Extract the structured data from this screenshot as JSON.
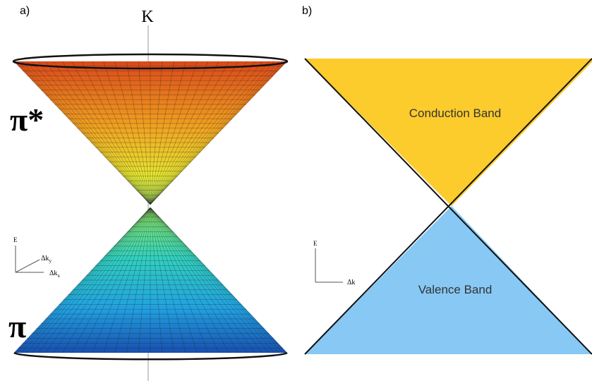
{
  "panel_a": {
    "label": "a)",
    "axis_label": "K",
    "upper_band": "π*",
    "lower_band": "π",
    "axes": {
      "vertical": "E",
      "diagonal": {
        "base": "Δk",
        "sub": "y"
      },
      "horizontal": {
        "base": "Δk",
        "sub": "x"
      }
    }
  },
  "panel_b": {
    "label": "b)",
    "upper_region": "Conduction Band",
    "lower_region": "Valence Band",
    "axes": {
      "vertical": "E",
      "horizontal": "Δk"
    }
  }
}
